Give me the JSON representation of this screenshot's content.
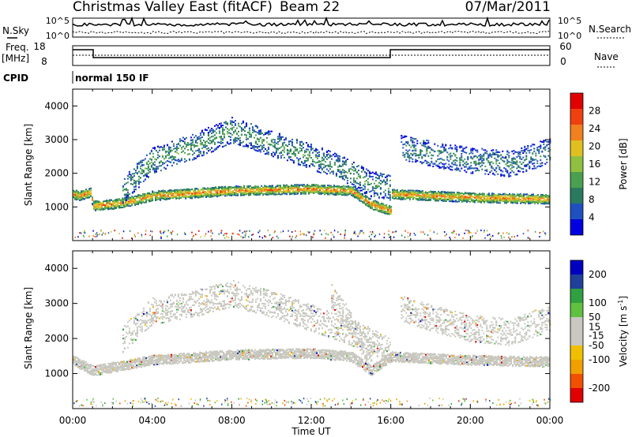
{
  "header": {
    "title": "Christmas Valley East (fitACF)",
    "beam": "Beam 22",
    "date": "07/Mar/2011"
  },
  "sky_panel": {
    "left_label": "N.Sky",
    "right_label": "N.Search",
    "left_ticks": [
      "10^5",
      "10^0"
    ],
    "right_ticks": [
      "10^5",
      "10^0"
    ]
  },
  "freq_panel": {
    "left_label_1": "Freq.",
    "left_label_2": "[MHz]",
    "right_label": "Nave",
    "left_ticks": [
      "18",
      "8"
    ],
    "right_ticks": [
      "60",
      "0"
    ]
  },
  "cpid_panel": {
    "label": "CPID",
    "value": "normal 150 IF"
  },
  "x_axis": {
    "label": "Time UT",
    "ticks": [
      "00:00",
      "04:00",
      "08:00",
      "12:00",
      "16:00",
      "20:00",
      "00:00"
    ]
  },
  "colors": {
    "power": [
      "#0000e0",
      "#2050c0",
      "#2a7a60",
      "#4aa050",
      "#90c040",
      "#e0c020",
      "#f08020",
      "#f04010",
      "#e00000"
    ],
    "velocity": [
      "#e00000",
      "#f05000",
      "#f0a000",
      "#f0c000",
      "#c8c8c0",
      "#c8c8c0",
      "#60c040",
      "#30a040",
      "#20409a",
      "#0000c0"
    ]
  },
  "chart_data": [
    {
      "type": "heatmap",
      "title": "",
      "xlabel": "Time UT",
      "ylabel": "Slant Range [km]",
      "xlim": [
        0,
        24
      ],
      "ylim": [
        0,
        4500
      ],
      "yticks": [
        1000,
        2000,
        3000,
        4000
      ],
      "colorbar": {
        "label": "Power [dB]",
        "ticks": [
          4,
          8,
          12,
          16,
          20,
          24,
          28
        ],
        "range": [
          0,
          32
        ]
      },
      "echo_bands": [
        {
          "x": [
            0.0,
            0.3,
            0.9,
            1.0,
            2.0,
            3.0,
            4.0,
            8.0,
            12.0,
            14.0,
            15.0,
            15.99,
            16.0,
            18.0,
            20.0,
            24.0
          ],
          "y": [
            1400,
            1350,
            1450,
            1050,
            1100,
            1200,
            1350,
            1500,
            1550,
            1500,
            1100,
            900,
            1400,
            1350,
            1300,
            1250
          ],
          "value": 24
        },
        {
          "x": [
            2.5,
            4.0,
            6.0,
            8.0,
            10.0,
            12.0,
            13.0,
            14.0,
            15.0,
            16.0
          ],
          "y": [
            1500,
            2400,
            2800,
            3300,
            2900,
            2500,
            2300,
            2000,
            1700,
            1600
          ],
          "value": 12
        },
        {
          "x": [
            16.5,
            18.0,
            20.0,
            22.0,
            24.0
          ],
          "y": [
            2800,
            2600,
            2400,
            2300,
            2700
          ],
          "value": 10
        }
      ]
    },
    {
      "type": "heatmap",
      "title": "",
      "xlabel": "Time UT",
      "ylabel": "Slant Range [km]",
      "xlim": [
        0,
        24
      ],
      "ylim": [
        0,
        4500
      ],
      "yticks": [
        1000,
        2000,
        3000,
        4000
      ],
      "colorbar": {
        "label": "Velocity [m s^-1]",
        "ticks": [
          200,
          100,
          50,
          15,
          -15,
          -50,
          -100,
          -200
        ],
        "range": [
          -250,
          250
        ]
      },
      "echo_bands": [
        {
          "x": [
            0.0,
            1.0,
            4.0,
            8.0,
            12.0,
            14.0,
            15.0,
            16.0,
            20.0,
            24.0
          ],
          "y": [
            1400,
            1100,
            1400,
            1550,
            1600,
            1500,
            1100,
            1500,
            1400,
            1350
          ],
          "value": 0
        },
        {
          "x": [
            2.5,
            4.0,
            6.0,
            8.0,
            10.0,
            12.0,
            14.0,
            16.0
          ],
          "y": [
            2000,
            2800,
            3000,
            3300,
            3000,
            2600,
            2200,
            1700
          ],
          "value": 0
        },
        {
          "x": [
            13.0,
            14.0,
            15.0
          ],
          "y": [
            3200,
            2400,
            1500
          ],
          "value": 30
        },
        {
          "x": [
            16.5,
            18.0,
            20.0,
            22.0,
            24.0
          ],
          "y": [
            2900,
            2600,
            2300,
            2200,
            2600
          ],
          "value": 0
        }
      ]
    }
  ]
}
